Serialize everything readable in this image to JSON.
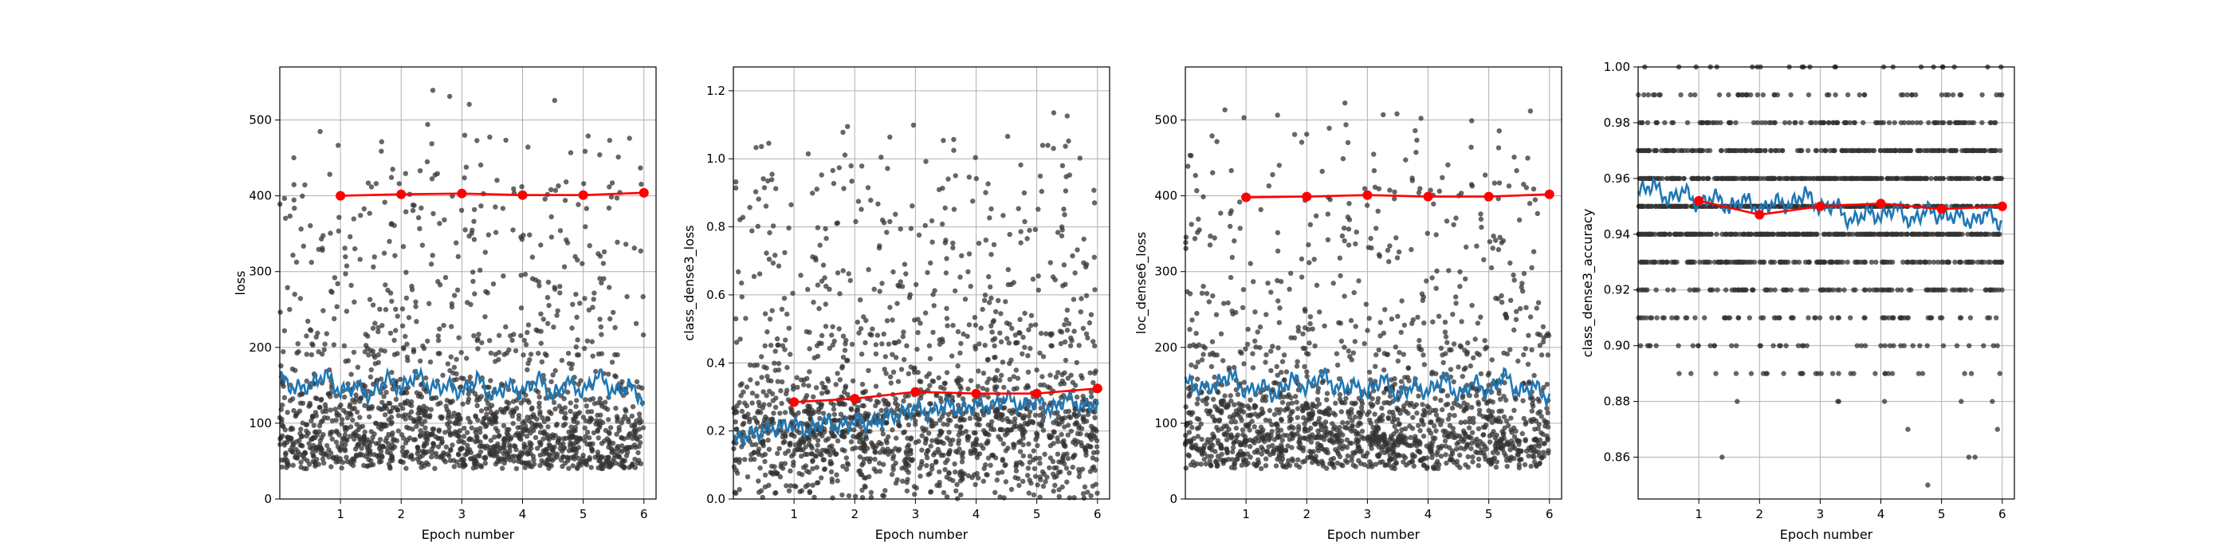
{
  "chart_data": [
    {
      "type": "scatter",
      "xlabel": "Epoch number",
      "ylabel": "loss",
      "xlim": [
        0.0,
        6.2
      ],
      "ylim": [
        0,
        570
      ],
      "xticks": [
        1,
        2,
        3,
        4,
        5,
        6
      ],
      "yticks": [
        0,
        100,
        200,
        300,
        400,
        500
      ],
      "xtick_labels": [
        "1",
        "2",
        "3",
        "4",
        "5",
        "6"
      ],
      "ytick_labels": [
        "0",
        "100",
        "200",
        "300",
        "400",
        "500"
      ],
      "grid": true,
      "scatter_color": "#333333",
      "running_mean_color": "#1f77b4",
      "epoch_mean_color": "#ff0000",
      "scatter": {
        "x_range": [
          0.0,
          6.0
        ],
        "center": 85,
        "spread_low": 40,
        "core_high": 190,
        "tail_high": 545
      },
      "running_mean": {
        "x": [
          0.0,
          0.25,
          0.5,
          0.75,
          1.0,
          1.25,
          1.5,
          1.75,
          2.0,
          2.25,
          2.5,
          2.75,
          3.0,
          3.25,
          3.5,
          3.75,
          4.0,
          4.25,
          4.5,
          4.75,
          5.0,
          5.25,
          5.5,
          5.75,
          6.0
        ],
        "y": [
          160,
          145,
          150,
          165,
          140,
          150,
          135,
          160,
          145,
          165,
          145,
          150,
          140,
          160,
          135,
          150,
          140,
          160,
          135,
          155,
          140,
          165,
          140,
          150,
          130
        ]
      },
      "epoch_mean": {
        "x": [
          1,
          2,
          3,
          4,
          5,
          6
        ],
        "y": [
          400,
          402,
          403,
          401,
          401,
          404
        ]
      }
    },
    {
      "type": "scatter",
      "xlabel": "Epoch number",
      "ylabel": "class_dense3_loss",
      "xlim": [
        0.0,
        6.2
      ],
      "ylim": [
        0.0,
        1.27
      ],
      "xticks": [
        1,
        2,
        3,
        4,
        5,
        6
      ],
      "yticks": [
        0.0,
        0.2,
        0.4,
        0.6,
        0.8,
        1.0,
        1.2
      ],
      "xtick_labels": [
        "1",
        "2",
        "3",
        "4",
        "5",
        "6"
      ],
      "ytick_labels": [
        "0.0",
        "0.2",
        "0.4",
        "0.6",
        "0.8",
        "1.0",
        "1.2"
      ],
      "grid": true,
      "scatter_color": "#333333",
      "running_mean_color": "#1f77b4",
      "epoch_mean_color": "#ff0000",
      "scatter": {
        "x_range": [
          0.0,
          6.0
        ],
        "center": 0.2,
        "spread_low": 0.0,
        "core_high": 0.45,
        "tail_high": 1.21
      },
      "running_mean": {
        "x": [
          0.0,
          0.25,
          0.5,
          0.75,
          1.0,
          1.25,
          1.5,
          1.75,
          2.0,
          2.25,
          2.5,
          2.75,
          3.0,
          3.25,
          3.5,
          3.75,
          4.0,
          4.25,
          4.5,
          4.75,
          5.0,
          5.25,
          5.5,
          5.75,
          6.0
        ],
        "y": [
          0.17,
          0.19,
          0.2,
          0.21,
          0.22,
          0.2,
          0.23,
          0.21,
          0.23,
          0.22,
          0.24,
          0.25,
          0.27,
          0.25,
          0.28,
          0.26,
          0.28,
          0.27,
          0.3,
          0.27,
          0.29,
          0.26,
          0.3,
          0.27,
          0.28
        ]
      },
      "epoch_mean": {
        "x": [
          1,
          2,
          3,
          4,
          5,
          6
        ],
        "y": [
          0.285,
          0.295,
          0.315,
          0.31,
          0.31,
          0.325
        ]
      }
    },
    {
      "type": "scatter",
      "xlabel": "Epoch number",
      "ylabel": "loc_dense6_loss",
      "xlim": [
        0.0,
        6.2
      ],
      "ylim": [
        0,
        570
      ],
      "xticks": [
        1,
        2,
        3,
        4,
        5,
        6
      ],
      "yticks": [
        0,
        100,
        200,
        300,
        400,
        500
      ],
      "xtick_labels": [
        "1",
        "2",
        "3",
        "4",
        "5",
        "6"
      ],
      "ytick_labels": [
        "0",
        "100",
        "200",
        "300",
        "400",
        "500"
      ],
      "grid": true,
      "scatter_color": "#333333",
      "running_mean_color": "#1f77b4",
      "epoch_mean_color": "#ff0000",
      "scatter": {
        "x_range": [
          0.0,
          6.0
        ],
        "center": 85,
        "spread_low": 40,
        "core_high": 190,
        "tail_high": 545
      },
      "running_mean": {
        "x": [
          0.0,
          0.25,
          0.5,
          0.75,
          1.0,
          1.25,
          1.5,
          1.75,
          2.0,
          2.25,
          2.5,
          2.75,
          3.0,
          3.25,
          3.5,
          3.75,
          4.0,
          4.25,
          4.5,
          4.75,
          5.0,
          5.25,
          5.5,
          5.75,
          6.0
        ],
        "y": [
          155,
          145,
          150,
          165,
          140,
          150,
          135,
          160,
          145,
          165,
          145,
          150,
          140,
          160,
          135,
          150,
          140,
          160,
          135,
          155,
          140,
          165,
          140,
          150,
          130
        ]
      },
      "epoch_mean": {
        "x": [
          1,
          2,
          3,
          4,
          5,
          6
        ],
        "y": [
          398,
          399,
          401,
          399,
          399,
          402
        ]
      }
    },
    {
      "type": "scatter",
      "xlabel": "Epoch number",
      "ylabel": "class_dense3_accuracy",
      "xlim": [
        0.0,
        6.2
      ],
      "ylim": [
        0.845,
        1.0
      ],
      "xticks": [
        1,
        2,
        3,
        4,
        5,
        6
      ],
      "yticks": [
        0.86,
        0.88,
        0.9,
        0.92,
        0.94,
        0.96,
        0.98,
        1.0
      ],
      "xtick_labels": [
        "1",
        "2",
        "3",
        "4",
        "5",
        "6"
      ],
      "ytick_labels": [
        "0.86",
        "0.88",
        "0.90",
        "0.92",
        "0.94",
        "0.96",
        "0.98",
        "1.00"
      ],
      "grid": true,
      "scatter_color": "#333333",
      "running_mean_color": "#1f77b4",
      "epoch_mean_color": "#ff0000",
      "scatter": {
        "x_range": [
          0.0,
          6.0
        ],
        "levels": [
          1.0,
          0.99,
          0.98,
          0.97,
          0.96,
          0.95,
          0.94,
          0.93,
          0.92,
          0.91,
          0.9,
          0.89,
          0.88,
          0.87,
          0.86,
          0.85
        ],
        "level_weights": [
          1,
          3,
          5,
          9,
          12,
          14,
          12,
          8,
          5,
          3,
          2,
          1,
          0.5,
          0.2,
          0.1,
          0.1
        ]
      },
      "running_mean": {
        "x": [
          0.0,
          0.25,
          0.5,
          0.75,
          1.0,
          1.25,
          1.5,
          1.75,
          2.0,
          2.25,
          2.5,
          2.75,
          3.0,
          3.25,
          3.5,
          3.75,
          4.0,
          4.25,
          4.5,
          4.75,
          5.0,
          5.25,
          5.5,
          5.75,
          6.0
        ],
        "y": [
          0.955,
          0.958,
          0.952,
          0.956,
          0.95,
          0.954,
          0.949,
          0.953,
          0.948,
          0.952,
          0.95,
          0.955,
          0.949,
          0.951,
          0.944,
          0.948,
          0.946,
          0.95,
          0.944,
          0.949,
          0.946,
          0.947,
          0.944,
          0.948,
          0.943
        ]
      },
      "epoch_mean": {
        "x": [
          1,
          2,
          3,
          4,
          5,
          6
        ],
        "y": [
          0.952,
          0.947,
          0.95,
          0.951,
          0.949,
          0.95
        ]
      }
    }
  ]
}
